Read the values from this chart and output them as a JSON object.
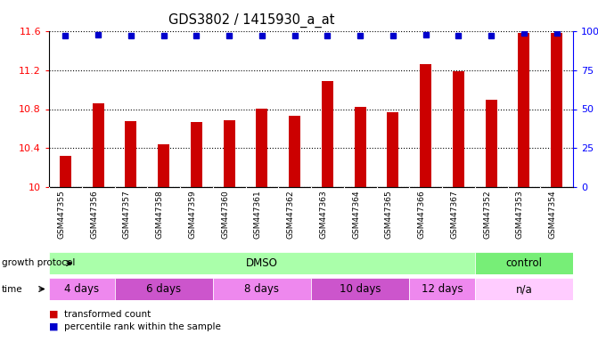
{
  "title": "GDS3802 / 1415930_a_at",
  "samples": [
    "GSM447355",
    "GSM447356",
    "GSM447357",
    "GSM447358",
    "GSM447359",
    "GSM447360",
    "GSM447361",
    "GSM447362",
    "GSM447363",
    "GSM447364",
    "GSM447365",
    "GSM447366",
    "GSM447367",
    "GSM447352",
    "GSM447353",
    "GSM447354"
  ],
  "bar_values": [
    10.32,
    10.86,
    10.68,
    10.44,
    10.67,
    10.69,
    10.8,
    10.73,
    11.09,
    10.82,
    10.77,
    11.26,
    11.19,
    10.9,
    11.58,
    11.58
  ],
  "percentile_values": [
    97,
    98,
    97,
    97,
    97,
    97,
    97,
    97,
    97,
    97,
    97,
    98,
    97,
    97,
    99,
    99
  ],
  "bar_color": "#cc0000",
  "percentile_color": "#0000cc",
  "ylim_left": [
    10.0,
    11.6
  ],
  "ylim_right": [
    0,
    100
  ],
  "yticks_left": [
    10.0,
    10.4,
    10.8,
    11.2,
    11.6
  ],
  "ytick_labels_left": [
    "10",
    "10.4",
    "10.8",
    "11.2",
    "11.6"
  ],
  "yticks_right": [
    0,
    25,
    50,
    75,
    100
  ],
  "ytick_labels_right": [
    "0",
    "25",
    "50",
    "75",
    "100%"
  ],
  "growth_protocol_groups": [
    {
      "label": "DMSO",
      "start": 0,
      "end": 13,
      "color": "#aaffaa"
    },
    {
      "label": "control",
      "start": 13,
      "end": 16,
      "color": "#77ee77"
    }
  ],
  "time_groups": [
    {
      "label": "4 days",
      "start": 0,
      "end": 2,
      "color": "#ee88ee"
    },
    {
      "label": "6 days",
      "start": 2,
      "end": 5,
      "color": "#cc55cc"
    },
    {
      "label": "8 days",
      "start": 5,
      "end": 8,
      "color": "#ee88ee"
    },
    {
      "label": "10 days",
      "start": 8,
      "end": 11,
      "color": "#cc55cc"
    },
    {
      "label": "12 days",
      "start": 11,
      "end": 13,
      "color": "#ee88ee"
    },
    {
      "label": "n/a",
      "start": 13,
      "end": 16,
      "color": "#ffccff"
    }
  ],
  "legend": [
    {
      "label": "transformed count",
      "color": "#cc0000"
    },
    {
      "label": "percentile rank within the sample",
      "color": "#0000cc"
    }
  ],
  "background_color": "#ffffff",
  "plot_bg_color": "#ffffff",
  "xtick_bg_color": "#d0d0d0"
}
